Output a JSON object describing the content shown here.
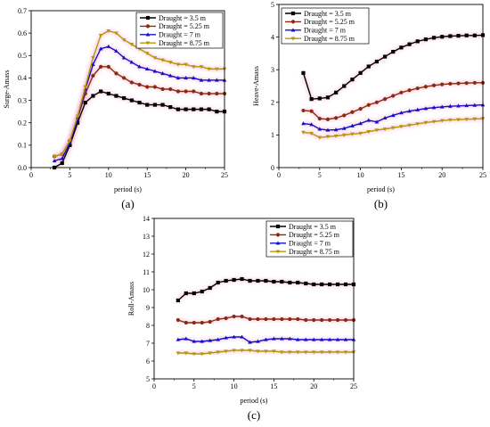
{
  "chart_data": [
    {
      "type": "line",
      "panel_label": "(a)",
      "xlabel": "period (s)",
      "ylabel": "Surge-Amass",
      "xlim": [
        0,
        25
      ],
      "ylim": [
        0,
        0.7
      ],
      "xticks": [
        "0",
        "5",
        "10",
        "15",
        "20",
        "25"
      ],
      "yticks": [
        "0.0",
        "0.1",
        "0.2",
        "0.3",
        "0.4",
        "0.5",
        "0.6",
        "0.7"
      ],
      "legend_position": "top-right",
      "series": [
        {
          "name": "Draught = 3.5 m",
          "color": "#000000",
          "marker": "square",
          "x": [
            3,
            4,
            5,
            6,
            7,
            8,
            9,
            10,
            11,
            12,
            13,
            14,
            15,
            16,
            17,
            18,
            19,
            20,
            21,
            22,
            23,
            24,
            25
          ],
          "y": [
            0.0,
            0.02,
            0.1,
            0.2,
            0.29,
            0.32,
            0.34,
            0.33,
            0.32,
            0.31,
            0.3,
            0.29,
            0.28,
            0.28,
            0.28,
            0.27,
            0.26,
            0.26,
            0.26,
            0.26,
            0.26,
            0.25,
            0.25
          ]
        },
        {
          "name": "Draught = 5.25 m",
          "color": "#8b2a0f",
          "marker": "circle",
          "x": [
            3,
            4,
            5,
            6,
            7,
            8,
            9,
            10,
            11,
            12,
            13,
            14,
            15,
            16,
            17,
            18,
            19,
            20,
            21,
            22,
            23,
            24,
            25
          ],
          "y": [
            0.05,
            0.06,
            0.12,
            0.22,
            0.33,
            0.41,
            0.45,
            0.45,
            0.42,
            0.4,
            0.38,
            0.37,
            0.36,
            0.36,
            0.35,
            0.35,
            0.34,
            0.34,
            0.34,
            0.33,
            0.33,
            0.33,
            0.33
          ]
        },
        {
          "name": "Draught = 7 m",
          "color": "#1010cc",
          "marker": "triangle-up",
          "x": [
            3,
            4,
            5,
            6,
            7,
            8,
            9,
            10,
            11,
            12,
            13,
            14,
            15,
            16,
            17,
            18,
            19,
            20,
            21,
            22,
            23,
            24,
            25
          ],
          "y": [
            0.03,
            0.04,
            0.11,
            0.22,
            0.35,
            0.46,
            0.53,
            0.54,
            0.52,
            0.49,
            0.47,
            0.45,
            0.44,
            0.43,
            0.42,
            0.41,
            0.4,
            0.4,
            0.4,
            0.39,
            0.39,
            0.39,
            0.39
          ]
        },
        {
          "name": "Draught = 8.75 m",
          "color": "#b8960c",
          "marker": "triangle-down",
          "x": [
            3,
            4,
            5,
            6,
            7,
            8,
            9,
            10,
            11,
            12,
            13,
            14,
            15,
            16,
            17,
            18,
            19,
            20,
            21,
            22,
            23,
            24,
            25
          ],
          "y": [
            0.05,
            0.06,
            0.12,
            0.23,
            0.36,
            0.49,
            0.59,
            0.61,
            0.6,
            0.57,
            0.55,
            0.53,
            0.51,
            0.49,
            0.48,
            0.47,
            0.46,
            0.46,
            0.45,
            0.45,
            0.44,
            0.44,
            0.44
          ]
        }
      ]
    },
    {
      "type": "line",
      "panel_label": "(b)",
      "xlabel": "period (s)",
      "ylabel": "Heave-Amass",
      "xlim": [
        0,
        25
      ],
      "ylim": [
        0,
        5
      ],
      "xticks": [
        "0",
        "5",
        "10",
        "15",
        "20",
        "25"
      ],
      "yticks": [
        "0",
        "1",
        "2",
        "3",
        "4",
        "5"
      ],
      "legend_position": "top-left",
      "series": [
        {
          "name": "Draught = 3.5 m",
          "color": "#000000",
          "marker": "square",
          "x": [
            3,
            4,
            5,
            6,
            7,
            8,
            9,
            10,
            11,
            12,
            13,
            14,
            15,
            16,
            17,
            18,
            19,
            20,
            21,
            22,
            23,
            24,
            25
          ],
          "y": [
            2.9,
            2.1,
            2.12,
            2.15,
            2.3,
            2.5,
            2.7,
            2.9,
            3.1,
            3.25,
            3.4,
            3.55,
            3.68,
            3.78,
            3.87,
            3.93,
            3.98,
            4.01,
            4.03,
            4.04,
            4.05,
            4.05,
            4.06
          ]
        },
        {
          "name": "Draught = 5.25 m",
          "color": "#8b2a0f",
          "marker": "circle",
          "x": [
            3,
            4,
            5,
            6,
            7,
            8,
            9,
            10,
            11,
            12,
            13,
            14,
            15,
            16,
            17,
            18,
            19,
            20,
            21,
            22,
            23,
            24,
            25
          ],
          "y": [
            1.75,
            1.73,
            1.5,
            1.48,
            1.52,
            1.6,
            1.7,
            1.8,
            1.92,
            2.0,
            2.1,
            2.2,
            2.3,
            2.37,
            2.43,
            2.48,
            2.52,
            2.55,
            2.57,
            2.58,
            2.59,
            2.6,
            2.6
          ]
        },
        {
          "name": "Draught = 7 m",
          "color": "#1010cc",
          "marker": "triangle-up",
          "x": [
            3,
            4,
            5,
            6,
            7,
            8,
            9,
            10,
            11,
            12,
            13,
            14,
            15,
            16,
            17,
            18,
            19,
            20,
            21,
            22,
            23,
            24,
            25
          ],
          "y": [
            1.35,
            1.32,
            1.18,
            1.15,
            1.16,
            1.2,
            1.28,
            1.35,
            1.45,
            1.4,
            1.52,
            1.6,
            1.68,
            1.73,
            1.77,
            1.81,
            1.84,
            1.86,
            1.88,
            1.89,
            1.9,
            1.91,
            1.92
          ]
        },
        {
          "name": "Draught = 8.75 m",
          "color": "#b8960c",
          "marker": "triangle-down",
          "x": [
            3,
            4,
            5,
            6,
            7,
            8,
            9,
            10,
            11,
            12,
            13,
            14,
            15,
            16,
            17,
            18,
            19,
            20,
            21,
            22,
            23,
            24,
            25
          ],
          "y": [
            1.08,
            1.05,
            0.92,
            0.95,
            0.97,
            1.0,
            1.03,
            1.05,
            1.1,
            1.15,
            1.18,
            1.22,
            1.26,
            1.3,
            1.34,
            1.38,
            1.41,
            1.44,
            1.46,
            1.47,
            1.48,
            1.49,
            1.5
          ]
        }
      ]
    },
    {
      "type": "line",
      "panel_label": "(c)",
      "xlabel": "period (s)",
      "ylabel": "Roll-Amass",
      "xlim": [
        0,
        25
      ],
      "ylim": [
        5,
        14
      ],
      "xticks": [
        "0",
        "5",
        "10",
        "15",
        "20",
        "25"
      ],
      "yticks": [
        "5",
        "6",
        "7",
        "8",
        "9",
        "10",
        "11",
        "12",
        "13",
        "14"
      ],
      "legend_position": "top-right",
      "series": [
        {
          "name": "Draught = 3.5 m",
          "color": "#000000",
          "marker": "square",
          "x": [
            3,
            4,
            5,
            6,
            7,
            8,
            9,
            10,
            11,
            12,
            13,
            14,
            15,
            16,
            17,
            18,
            19,
            20,
            21,
            22,
            23,
            24,
            25
          ],
          "y": [
            9.4,
            9.8,
            9.8,
            9.9,
            10.1,
            10.4,
            10.5,
            10.55,
            10.6,
            10.5,
            10.5,
            10.5,
            10.45,
            10.45,
            10.4,
            10.4,
            10.35,
            10.3,
            10.3,
            10.3,
            10.3,
            10.3,
            10.3
          ]
        },
        {
          "name": "Draught = 5.25 m",
          "color": "#8b2a0f",
          "marker": "circle",
          "x": [
            3,
            4,
            5,
            6,
            7,
            8,
            9,
            10,
            11,
            12,
            13,
            14,
            15,
            16,
            17,
            18,
            19,
            20,
            21,
            22,
            23,
            24,
            25
          ],
          "y": [
            8.3,
            8.15,
            8.15,
            8.15,
            8.2,
            8.35,
            8.4,
            8.5,
            8.5,
            8.35,
            8.35,
            8.35,
            8.35,
            8.35,
            8.35,
            8.35,
            8.3,
            8.3,
            8.3,
            8.3,
            8.3,
            8.3,
            8.3
          ]
        },
        {
          "name": "Draught = 7 m",
          "color": "#1010cc",
          "marker": "triangle-up",
          "x": [
            3,
            4,
            5,
            6,
            7,
            8,
            9,
            10,
            11,
            12,
            13,
            14,
            15,
            16,
            17,
            18,
            19,
            20,
            21,
            22,
            23,
            24,
            25
          ],
          "y": [
            7.2,
            7.25,
            7.1,
            7.1,
            7.15,
            7.2,
            7.3,
            7.35,
            7.35,
            7.05,
            7.1,
            7.2,
            7.25,
            7.25,
            7.25,
            7.2,
            7.2,
            7.2,
            7.2,
            7.2,
            7.2,
            7.2,
            7.2
          ]
        },
        {
          "name": "Draught = 8.75 m",
          "color": "#b8960c",
          "marker": "triangle-down",
          "x": [
            3,
            4,
            5,
            6,
            7,
            8,
            9,
            10,
            11,
            12,
            13,
            14,
            15,
            16,
            17,
            18,
            19,
            20,
            21,
            22,
            23,
            24,
            25
          ],
          "y": [
            6.45,
            6.45,
            6.4,
            6.4,
            6.45,
            6.5,
            6.55,
            6.6,
            6.6,
            6.6,
            6.55,
            6.55,
            6.55,
            6.5,
            6.5,
            6.5,
            6.5,
            6.5,
            6.5,
            6.5,
            6.5,
            6.5,
            6.5
          ]
        }
      ]
    }
  ]
}
